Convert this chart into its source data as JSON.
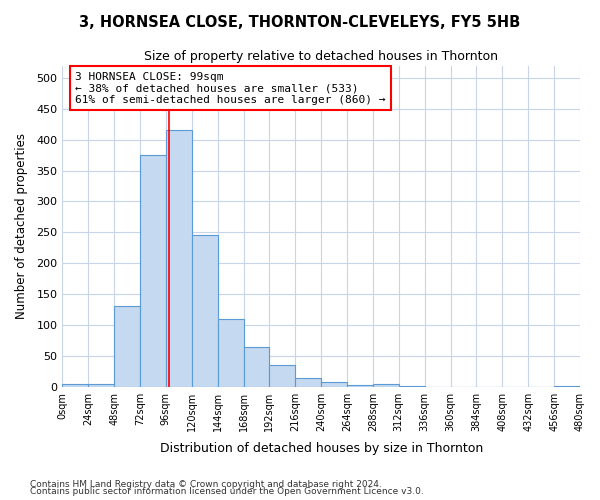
{
  "title": "3, HORNSEA CLOSE, THORNTON-CLEVELEYS, FY5 5HB",
  "subtitle": "Size of property relative to detached houses in Thornton",
  "xlabel": "Distribution of detached houses by size in Thornton",
  "ylabel": "Number of detached properties",
  "bin_edges": [
    0,
    24,
    48,
    72,
    96,
    120,
    144,
    168,
    192,
    216,
    240,
    264,
    288,
    312,
    336,
    360,
    384,
    408,
    432,
    456,
    480
  ],
  "bar_values": [
    4,
    5,
    130,
    375,
    415,
    245,
    110,
    65,
    35,
    15,
    8,
    3,
    5,
    2,
    0,
    0,
    0,
    0,
    0,
    2
  ],
  "bar_color": "#c5d9f0",
  "bar_edge_color": "#5b9bd5",
  "property_line_x": 99,
  "annotation_title": "3 HORNSEA CLOSE: 99sqm",
  "annotation_line1": "← 38% of detached houses are smaller (533)",
  "annotation_line2": "61% of semi-detached houses are larger (860) →",
  "tick_labels": [
    "0sqm",
    "24sqm",
    "48sqm",
    "72sqm",
    "96sqm",
    "120sqm",
    "144sqm",
    "168sqm",
    "192sqm",
    "216sqm",
    "240sqm",
    "264sqm",
    "288sqm",
    "312sqm",
    "336sqm",
    "360sqm",
    "384sqm",
    "408sqm",
    "432sqm",
    "456sqm",
    "480sqm"
  ],
  "yticks": [
    0,
    50,
    100,
    150,
    200,
    250,
    300,
    350,
    400,
    450,
    500
  ],
  "ylim": [
    0,
    520
  ],
  "xlim": [
    0,
    480
  ],
  "bg_color": "#ffffff",
  "plot_bg_color": "#ffffff",
  "grid_color": "#c8d4e8",
  "footer_line1": "Contains HM Land Registry data © Crown copyright and database right 2024.",
  "footer_line2": "Contains public sector information licensed under the Open Government Licence v3.0."
}
